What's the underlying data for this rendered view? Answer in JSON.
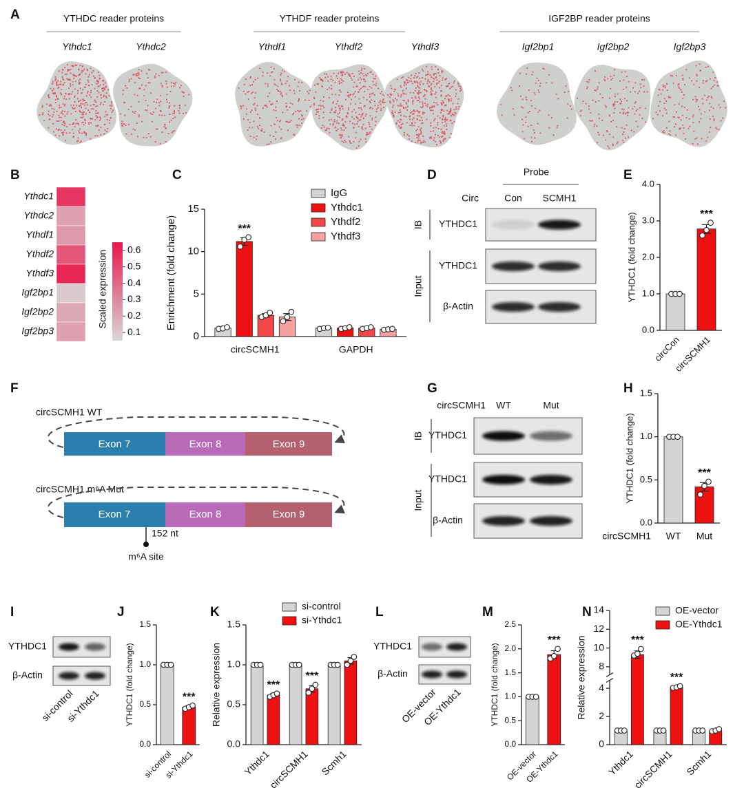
{
  "panel_a": {
    "panel": "A",
    "groups": [
      {
        "title": "YTHDC reader proteins",
        "genes": [
          "Ythdc1",
          "Ythdc2"
        ]
      },
      {
        "title": "YTHDF reader proteins",
        "genes": [
          "Ythdf1",
          "Ythdf2",
          "Ythdf3"
        ]
      },
      {
        "title": "IGF2BP reader proteins",
        "genes": [
          "Igf2bp1",
          "Igf2bp2",
          "Igf2bp3"
        ]
      }
    ]
  },
  "panel_d": {
    "panel": "D",
    "header": "Probe",
    "row_label": "Circ",
    "lanes": [
      "Con",
      "SCMH1"
    ],
    "sections": [
      {
        "label": "IB",
        "blots": [
          "YTHDC1"
        ]
      },
      {
        "label": "Input",
        "blots": [
          "YTHDC1",
          "β-Actin"
        ]
      }
    ]
  },
  "panel_g": {
    "panel": "G",
    "row_label": "circSCMH1",
    "lanes": [
      "WT",
      "Mut"
    ],
    "sections": [
      {
        "label": "IB",
        "blots": [
          "YTHDC1"
        ]
      },
      {
        "label": "Input",
        "blots": [
          "YTHDC1",
          "β-Actin"
        ]
      }
    ]
  },
  "panel_i": {
    "panel": "I",
    "blots": [
      "YTHDC1",
      "β-Actin"
    ],
    "lanes": [
      "si-control",
      "si-Ythdc1"
    ]
  },
  "panel_l": {
    "panel": "L",
    "blots": [
      "YTHDC1",
      "β-Actin"
    ],
    "lanes": [
      "OE-vector",
      "OE-Ythdc1"
    ]
  },
  "panel_f": {
    "panel": "F",
    "constructs": [
      {
        "name": "circSCMH1 WT",
        "exons": [
          "Exon 7",
          "Exon 8",
          "Exon 9"
        ]
      },
      {
        "name": "circSCMH1 m⁶A Mut",
        "exons": [
          "Exon 7",
          "Exon 8",
          "Exon 9"
        ],
        "site_position": "152 nt",
        "site_label": "m⁶A site"
      }
    ]
  },
  "chart_data": [
    {
      "type": "heatmap",
      "panel": "B",
      "rows": [
        "Ythdc1",
        "Ythdc2",
        "Ythdf1",
        "Ythdf2",
        "Ythdf3",
        "Igf2bp1",
        "Igf2bp2",
        "Igf2bp3"
      ],
      "values": [
        0.55,
        0.22,
        0.25,
        0.45,
        0.6,
        0.1,
        0.2,
        0.22
      ],
      "colorbar_label": "Scaled expression",
      "clim": [
        0.05,
        0.65
      ],
      "cticks": [
        0.1,
        0.2,
        0.3,
        0.4,
        0.5,
        0.6
      ],
      "colors": [
        "#d8d8d8",
        "#e8174a"
      ]
    },
    {
      "type": "bar",
      "panel": "C",
      "ylabel": "Enrichment (fold change)",
      "categories": [
        "circSCMH1",
        "GAPDH"
      ],
      "series": [
        {
          "name": "IgG",
          "color": "#d4d4d4",
          "values": [
            1.0,
            1.0
          ],
          "errors": [
            0.1,
            0.1
          ],
          "points": [
            [
              0.9,
              0.95,
              1.1
            ],
            [
              0.9,
              1.0,
              1.05
            ]
          ]
        },
        {
          "name": "Ythdc1",
          "color": "#ee1111",
          "values": [
            11.2,
            1.0
          ],
          "errors": [
            0.45,
            0.1
          ],
          "points": [
            [
              10.6,
              11.4,
              11.7
            ],
            [
              0.9,
              1.0,
              1.1
            ]
          ]
        },
        {
          "name": "Ythdf2",
          "color": "#f2484a",
          "values": [
            2.5,
            1.0
          ],
          "errors": [
            0.2,
            0.1
          ],
          "points": [
            [
              2.3,
              2.5,
              2.8
            ],
            [
              0.9,
              1.0,
              1.1
            ]
          ]
        },
        {
          "name": "Ythdf3",
          "color": "#f7a0a0",
          "values": [
            2.3,
            0.85
          ],
          "errors": [
            0.4,
            0.05
          ],
          "points": [
            [
              1.8,
              2.3,
              2.9
            ],
            [
              0.8,
              0.85,
              0.9
            ]
          ]
        }
      ],
      "ylim": [
        0,
        15
      ],
      "yticks": [
        0,
        5,
        10,
        15
      ],
      "annotations": [
        {
          "text": "***",
          "series": "Ythdc1",
          "category": "circSCMH1"
        }
      ]
    },
    {
      "type": "bar",
      "panel": "E",
      "ylabel": "YTHDC1 (fold change)",
      "categories": [
        "circCon",
        "circSCMH1"
      ],
      "values": [
        1.0,
        2.78
      ],
      "errors": [
        0,
        0.12
      ],
      "points": [
        [
          1,
          1,
          1
        ],
        [
          2.6,
          2.75,
          2.95
        ]
      ],
      "colors": [
        "#d4d4d4",
        "#ee1111"
      ],
      "ylim": [
        0,
        4
      ],
      "yticks": [
        {
          "value": 0,
          "label": "0.0"
        },
        {
          "value": 1,
          "label": "1.0"
        },
        {
          "value": 2,
          "label": "2.0"
        },
        {
          "value": 3,
          "label": "3.0"
        },
        {
          "value": 4,
          "label": "4.0"
        }
      ],
      "annotations": [
        {
          "text": "***",
          "category": "circSCMH1"
        }
      ]
    },
    {
      "type": "bar",
      "panel": "H",
      "ylabel": "YTHDC1 (fold change)",
      "xlabel": "circSCMH1",
      "categories": [
        "WT",
        "Mut"
      ],
      "values": [
        1.0,
        0.42
      ],
      "errors": [
        0,
        0.05
      ],
      "points": [
        [
          1,
          1,
          1
        ],
        [
          0.33,
          0.43,
          0.48
        ]
      ],
      "colors": [
        "#d4d4d4",
        "#ee1111"
      ],
      "ylim": [
        0,
        1.5
      ],
      "yticks": [
        {
          "value": 0,
          "label": "0.0"
        },
        0.5,
        {
          "value": 1,
          "label": "1.0"
        },
        1.5
      ],
      "annotations": [
        {
          "text": "***",
          "category": "Mut"
        }
      ]
    },
    {
      "type": "bar",
      "panel": "J",
      "ylabel": "YTHDC1 (fold change)",
      "categories": [
        "si-control",
        "si-Ythdc1"
      ],
      "values": [
        1.0,
        0.47
      ],
      "errors": [
        0,
        0.02
      ],
      "points": [
        [
          1,
          1,
          1
        ],
        [
          0.45,
          0.47,
          0.49
        ]
      ],
      "colors": [
        "#d4d4d4",
        "#ee1111"
      ],
      "ylim": [
        0,
        1.5
      ],
      "yticks": [
        {
          "value": 0,
          "label": "0.0"
        },
        0.5,
        {
          "value": 1,
          "label": "1.0"
        },
        1.5
      ],
      "annotations": [
        {
          "text": "***",
          "category": "si-Ythdc1"
        }
      ]
    },
    {
      "type": "bar",
      "panel": "K",
      "ylabel": "Relative expression",
      "categories": [
        "Ythdc1",
        "circSCMH1",
        "Scmh1"
      ],
      "series": [
        {
          "name": "si-control",
          "color": "#d4d4d4",
          "values": [
            1.0,
            1.0,
            1.0
          ],
          "errors": [
            0,
            0,
            0
          ],
          "points": [
            [
              1,
              1,
              1
            ],
            [
              1,
              1,
              1
            ],
            [
              1,
              1,
              1
            ]
          ]
        },
        {
          "name": "si-Ythdc1",
          "color": "#ee1111",
          "values": [
            0.62,
            0.7,
            1.05
          ],
          "errors": [
            0.02,
            0.04,
            0.04
          ],
          "points": [
            [
              0.6,
              0.62,
              0.64
            ],
            [
              0.65,
              0.7,
              0.75
            ],
            [
              1.0,
              1.05,
              1.1
            ]
          ]
        }
      ],
      "ylim": [
        0,
        1.5
      ],
      "yticks": [
        {
          "value": 0,
          "label": "0.0"
        },
        0.5,
        {
          "value": 1,
          "label": "1.0"
        },
        1.5
      ],
      "annotations": [
        {
          "text": "***",
          "series": "si-Ythdc1",
          "category": "Ythdc1"
        },
        {
          "text": "***",
          "series": "si-Ythdc1",
          "category": "circSCMH1"
        }
      ]
    },
    {
      "type": "bar",
      "panel": "M",
      "ylabel": "YTHDC1 (fold change)",
      "categories": [
        "OE-vector",
        "OE-Ythdc1"
      ],
      "values": [
        1.0,
        1.88
      ],
      "errors": [
        0,
        0.08
      ],
      "points": [
        [
          1,
          1,
          1
        ],
        [
          1.8,
          1.85,
          2.0
        ]
      ],
      "colors": [
        "#d4d4d4",
        "#ee1111"
      ],
      "ylim": [
        0,
        2.5
      ],
      "yticks": [
        {
          "value": 0,
          "label": "0.0"
        },
        0.5,
        {
          "value": 1,
          "label": "1.0"
        },
        1.5,
        {
          "value": 2,
          "label": "2.0"
        },
        2.5
      ],
      "annotations": [
        {
          "text": "***",
          "category": "OE-Ythdc1"
        }
      ]
    },
    {
      "type": "bar",
      "panel": "N",
      "ylabel": "Relative expression",
      "categories": [
        "Ythdc1",
        "circSCMH1",
        "Scmh1"
      ],
      "series": [
        {
          "name": "OE-vector",
          "color": "#d4d4d4",
          "values": [
            1.0,
            1.0,
            1.0
          ],
          "errors": [
            0,
            0,
            0
          ],
          "points": [
            [
              1,
              1,
              1
            ],
            [
              1,
              1,
              1
            ],
            [
              1,
              1,
              1
            ]
          ]
        },
        {
          "name": "OE-Ythdc1",
          "color": "#ee1111",
          "values": [
            9.3,
            4.2,
            1.0
          ],
          "errors": [
            0.4,
            0.15,
            0.05
          ],
          "points": [
            [
              9.2,
              9.4,
              9.9
            ],
            [
              4.1,
              4.2,
              4.4
            ],
            [
              0.95,
              1.0,
              1.1
            ]
          ]
        }
      ],
      "ylim": [
        0,
        14
      ],
      "yticks": [
        0,
        2,
        4,
        8,
        10,
        12,
        14
      ],
      "ybreak": [
        4,
        8
      ],
      "annotations": [
        {
          "text": "***",
          "series": "OE-Ythdc1",
          "category": "Ythdc1"
        },
        {
          "text": "***",
          "series": "OE-Ythdc1",
          "category": "circSCMH1"
        }
      ]
    }
  ]
}
